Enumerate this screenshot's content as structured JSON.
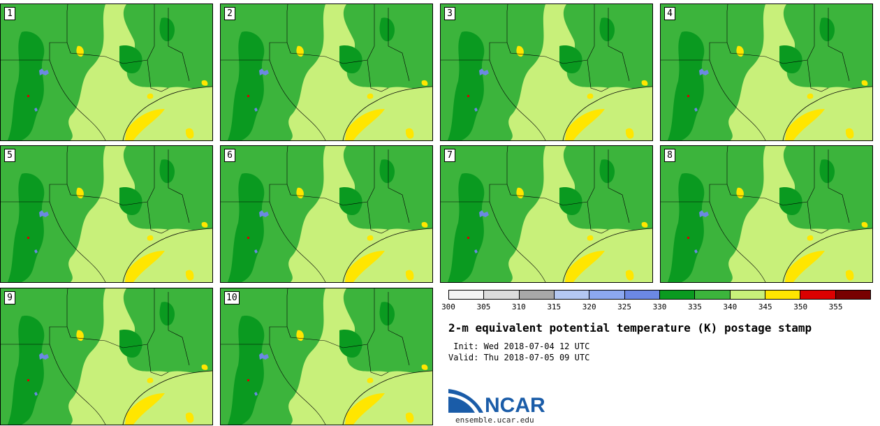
{
  "stamps": [
    "1",
    "2",
    "3",
    "4",
    "5",
    "6",
    "7",
    "8",
    "9",
    "10"
  ],
  "colorbar": {
    "ticks": [
      "300",
      "305",
      "310",
      "315",
      "320",
      "325",
      "330",
      "335",
      "340",
      "345",
      "350",
      "355"
    ],
    "colors": [
      "#f5f5f5",
      "#dcdcdc",
      "#a8a8a8",
      "#b4c8f2",
      "#8ca8f0",
      "#6c88e4",
      "#0a9a20",
      "#3cb43c",
      "#c8f07a",
      "#ffe600",
      "#dc0000",
      "#780000"
    ]
  },
  "map_colors": {
    "dark_green": "#0a9a20",
    "mid_green": "#3cb43c",
    "light_green": "#c8f07a",
    "yellow": "#ffe600",
    "blue": "#6c88e4",
    "red": "#dc0000"
  },
  "title": "2-m equivalent potential temperature (K) postage stamp",
  "init": " Init: Wed 2018-07-04 12 UTC",
  "valid": "Valid: Thu 2018-07-05 09 UTC",
  "logo": {
    "text": "NCAR",
    "url": "ensemble.ucar.edu",
    "color": "#1a5ca8"
  }
}
